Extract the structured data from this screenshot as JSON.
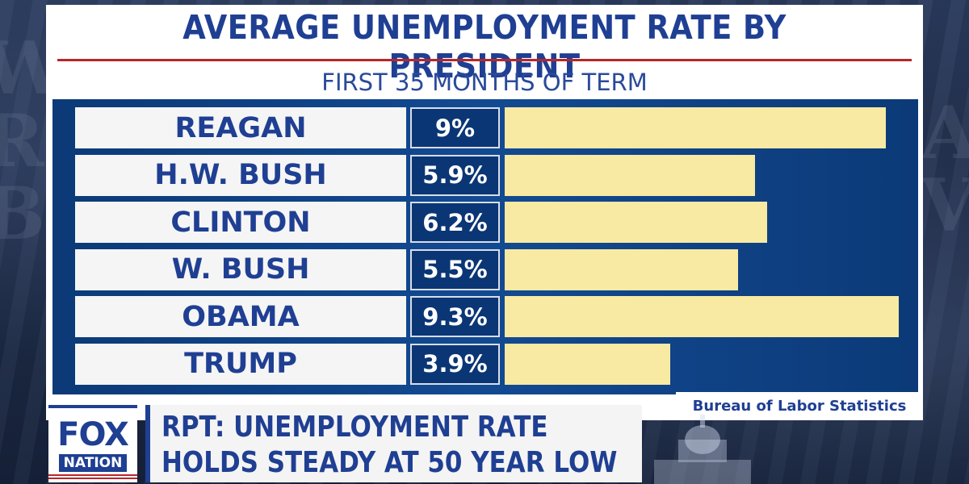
{
  "chart_data": {
    "type": "bar",
    "title": "AVERAGE UNEMPLOYMENT RATE BY PRESIDENT",
    "subtitle": "FIRST 35 MONTHS OF TERM",
    "categories": [
      "REAGAN",
      "H.W. BUSH",
      "CLINTON",
      "W. BUSH",
      "OBAMA",
      "TRUMP"
    ],
    "values": [
      9,
      5.9,
      6.2,
      5.5,
      9.3,
      3.9
    ],
    "value_labels": [
      "9%",
      "5.9%",
      "6.2%",
      "5.5%",
      "9.3%",
      "3.9%"
    ],
    "source": "Bureau of Labor Statistics",
    "orientation": "horizontal",
    "bar_color": "#f8eaa2"
  },
  "lower_third": {
    "logo_top": "FOX",
    "logo_bottom": "NATION",
    "headline_line1": "RPT: UNEMPLOYMENT RATE",
    "headline_line2": "HOLDS STEADY AT 50 YEAR LOW"
  },
  "colors": {
    "brand_blue": "#1f3f93",
    "panel_blue": "#0e3e80",
    "accent_red": "#b8262b"
  }
}
